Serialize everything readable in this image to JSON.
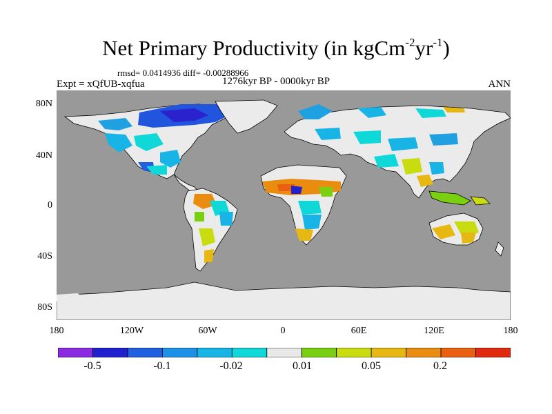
{
  "title": {
    "main": "Net Primary Productivity (in kgCm",
    "exp1": "-2",
    "mid": "yr",
    "exp2": "-1",
    "close": ")"
  },
  "stats": "rmsd= 0.0414936 diff= -0.00288966",
  "left_label": "Expt = xQfUB-xqfua",
  "center_label": "1276kyr BP - 0000kyr BP",
  "right_label": "ANN",
  "lat_labels": [
    "80N",
    "40N",
    "0",
    "40S",
    "80S"
  ],
  "lon_labels": [
    "180",
    "120W",
    "60W",
    "0",
    "60E",
    "120E",
    "180"
  ],
  "colorbar": {
    "colors": [
      "#8a2be2",
      "#2020d0",
      "#1f5fe0",
      "#1e90e6",
      "#18b4e6",
      "#10d8d8",
      "#e8e8e8",
      "#7ad010",
      "#c8dc10",
      "#e8b812",
      "#ea8c10",
      "#e86010",
      "#e02a10"
    ],
    "labels": [
      "-0.5",
      "-0.1",
      "-0.02",
      "0.01",
      "0.05",
      "0.2"
    ]
  },
  "colors": {
    "ocean": "#999999",
    "land_neutral": "#ebebeb",
    "coast": "#000000"
  }
}
